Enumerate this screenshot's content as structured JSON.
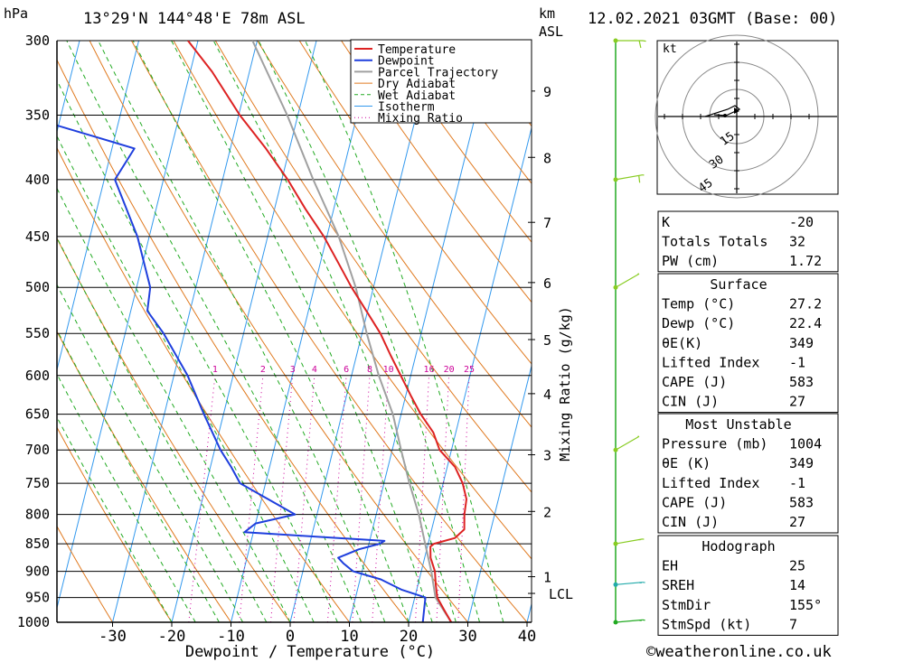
{
  "header": {
    "location": "13°29'N  144°48'E  78m  ASL",
    "date": "12.02.2021  03GMT  (Base: 00)",
    "hpa_label": "hPa",
    "km_label": "km",
    "asl_label": "ASL"
  },
  "footer": {
    "credit": "©weatheronline.co.uk"
  },
  "hodograph": {
    "unit_label": "kt",
    "ring_labels": [
      "15",
      "30",
      "45"
    ]
  },
  "colors": {
    "temperature": "#dd2222",
    "dewpoint": "#1f3fdd",
    "parcel": "#a0a0a0",
    "dry_adiabat": "#e07a20",
    "wet_adiabat": "#22aa22",
    "isotherm": "#3399ee",
    "mixing_ratio": "#cc0099",
    "wind": "#88cc22",
    "wind_low": "#22aa22",
    "wind_lowest": "#22aaaa"
  },
  "info": {
    "general": [
      {
        "label": "K",
        "value": "-20"
      },
      {
        "label": "Totals Totals",
        "value": "32"
      },
      {
        "label": "PW (cm)",
        "value": "1.72"
      }
    ],
    "surface": {
      "title": "Surface",
      "rows": [
        {
          "label": "Temp (°C)",
          "value": "27.2"
        },
        {
          "label": "Dewp (°C)",
          "value": "22.4"
        },
        {
          "label": "θE(K)",
          "value": "349"
        },
        {
          "label": "Lifted Index",
          "value": "-1"
        },
        {
          "label": "CAPE (J)",
          "value": "583"
        },
        {
          "label": "CIN (J)",
          "value": "27"
        }
      ]
    },
    "most_unstable": {
      "title": "Most Unstable",
      "rows": [
        {
          "label": "Pressure (mb)",
          "value": "1004"
        },
        {
          "label": "θE (K)",
          "value": "349"
        },
        {
          "label": "Lifted Index",
          "value": "-1"
        },
        {
          "label": "CAPE (J)",
          "value": "583"
        },
        {
          "label": "CIN (J)",
          "value": "27"
        }
      ]
    },
    "hodograph": {
      "title": "Hodograph",
      "rows": [
        {
          "label": "EH",
          "value": "25"
        },
        {
          "label": "SREH",
          "value": "14"
        },
        {
          "label": "StmDir",
          "value": "155°"
        },
        {
          "label": "StmSpd (kt)",
          "value": "7"
        }
      ]
    }
  },
  "chart_data": {
    "type": "skew-t log-p",
    "xlabel": "Dewpoint / Temperature (°C)",
    "ylabel_right": "Mixing Ratio (g/kg)",
    "pressure_levels": [
      300,
      350,
      400,
      450,
      500,
      550,
      600,
      650,
      700,
      750,
      800,
      850,
      900,
      950,
      1000
    ],
    "temperature_ticks": [
      -30,
      -20,
      -10,
      0,
      10,
      20,
      30,
      40
    ],
    "xlim": [
      -40,
      40
    ],
    "ylim_hpa": [
      1000,
      300
    ],
    "height_km": [
      {
        "km": "1",
        "p": 910
      },
      {
        "km": "2",
        "p": 795
      },
      {
        "km": "3",
        "p": 707
      },
      {
        "km": "4",
        "p": 623
      },
      {
        "km": "5",
        "p": 557
      },
      {
        "km": "6",
        "p": 495
      },
      {
        "km": "7",
        "p": 437
      },
      {
        "km": "8",
        "p": 382
      },
      {
        "km": "9",
        "p": 333
      }
    ],
    "lcl": {
      "label": "LCL",
      "p": 942
    },
    "mixing_ratio_labels": [
      "1",
      "2",
      "3",
      "4",
      "6",
      "8",
      "10",
      "16",
      "20",
      "25"
    ],
    "mixing_ratio_values": [
      1,
      2,
      3,
      4,
      6,
      8,
      10,
      16,
      20,
      25
    ],
    "legend": [
      "Temperature",
      "Dewpoint",
      "Parcel Trajectory",
      "Dry Adiabat",
      "Wet Adiabat",
      "Isotherm",
      "Mixing Ratio"
    ],
    "legend_position": "top-center",
    "temperature_profile": [
      [
        1000,
        27.2
      ],
      [
        975,
        25.5
      ],
      [
        950,
        23.8
      ],
      [
        925,
        23.0
      ],
      [
        900,
        22.3
      ],
      [
        875,
        21.0
      ],
      [
        855,
        20.5
      ],
      [
        850,
        21.0
      ],
      [
        840,
        24.3
      ],
      [
        825,
        25.5
      ],
      [
        800,
        24.9
      ],
      [
        775,
        24.6
      ],
      [
        750,
        23.3
      ],
      [
        725,
        21.3
      ],
      [
        700,
        18.0
      ],
      [
        675,
        16.2
      ],
      [
        650,
        13.3
      ],
      [
        625,
        10.8
      ],
      [
        600,
        8.3
      ],
      [
        575,
        5.7
      ],
      [
        550,
        3.1
      ],
      [
        525,
        -0.2
      ],
      [
        500,
        -3.7
      ],
      [
        475,
        -7.0
      ],
      [
        450,
        -10.5
      ],
      [
        425,
        -14.8
      ],
      [
        400,
        -19.0
      ],
      [
        375,
        -24.0
      ],
      [
        350,
        -29.8
      ],
      [
        320,
        -36.3
      ],
      [
        300,
        -41.7
      ]
    ],
    "dewpoint_profile": [
      [
        1000,
        22.4
      ],
      [
        975,
        22.1
      ],
      [
        950,
        21.8
      ],
      [
        935,
        17.5
      ],
      [
        915,
        13.5
      ],
      [
        900,
        8.5
      ],
      [
        885,
        6.5
      ],
      [
        875,
        5.4
      ],
      [
        860,
        8.5
      ],
      [
        850,
        11.8
      ],
      [
        845,
        12.5
      ],
      [
        830,
        -11.5
      ],
      [
        815,
        -10.0
      ],
      [
        800,
        -3.7
      ],
      [
        750,
        -14.3
      ],
      [
        725,
        -16.5
      ],
      [
        700,
        -19.0
      ],
      [
        650,
        -23.3
      ],
      [
        600,
        -27.7
      ],
      [
        550,
        -33.5
      ],
      [
        525,
        -37.2
      ],
      [
        500,
        -37.7
      ],
      [
        450,
        -42.0
      ],
      [
        400,
        -48.2
      ],
      [
        375,
        -46.2
      ],
      [
        350,
        -66.5
      ],
      [
        325,
        -65.2
      ],
      [
        300,
        -68.0
      ]
    ],
    "parcel_profile": [
      [
        1000,
        27.2
      ],
      [
        950,
        23.5
      ],
      [
        900,
        21.7
      ],
      [
        850,
        19.5
      ],
      [
        800,
        17.2
      ],
      [
        750,
        14.3
      ],
      [
        700,
        11.5
      ],
      [
        650,
        8.6
      ],
      [
        600,
        4.6
      ],
      [
        550,
        0.8
      ],
      [
        500,
        -3.0
      ],
      [
        450,
        -8.0
      ],
      [
        400,
        -14.7
      ],
      [
        350,
        -21.8
      ],
      [
        300,
        -30.8
      ]
    ],
    "wind_barbs": [
      {
        "p": 300,
        "direction": 90,
        "speed_kt": 15
      },
      {
        "p": 400,
        "direction": 80,
        "speed_kt": 15
      },
      {
        "p": 500,
        "direction": 60,
        "speed_kt": 10
      },
      {
        "p": 700,
        "direction": 60,
        "speed_kt": 10
      },
      {
        "p": 850,
        "direction": 80,
        "speed_kt": 20
      },
      {
        "p": 925,
        "direction": 85,
        "speed_kt": 20
      },
      {
        "p": 1000,
        "direction": 85,
        "speed_kt": 20
      }
    ]
  }
}
